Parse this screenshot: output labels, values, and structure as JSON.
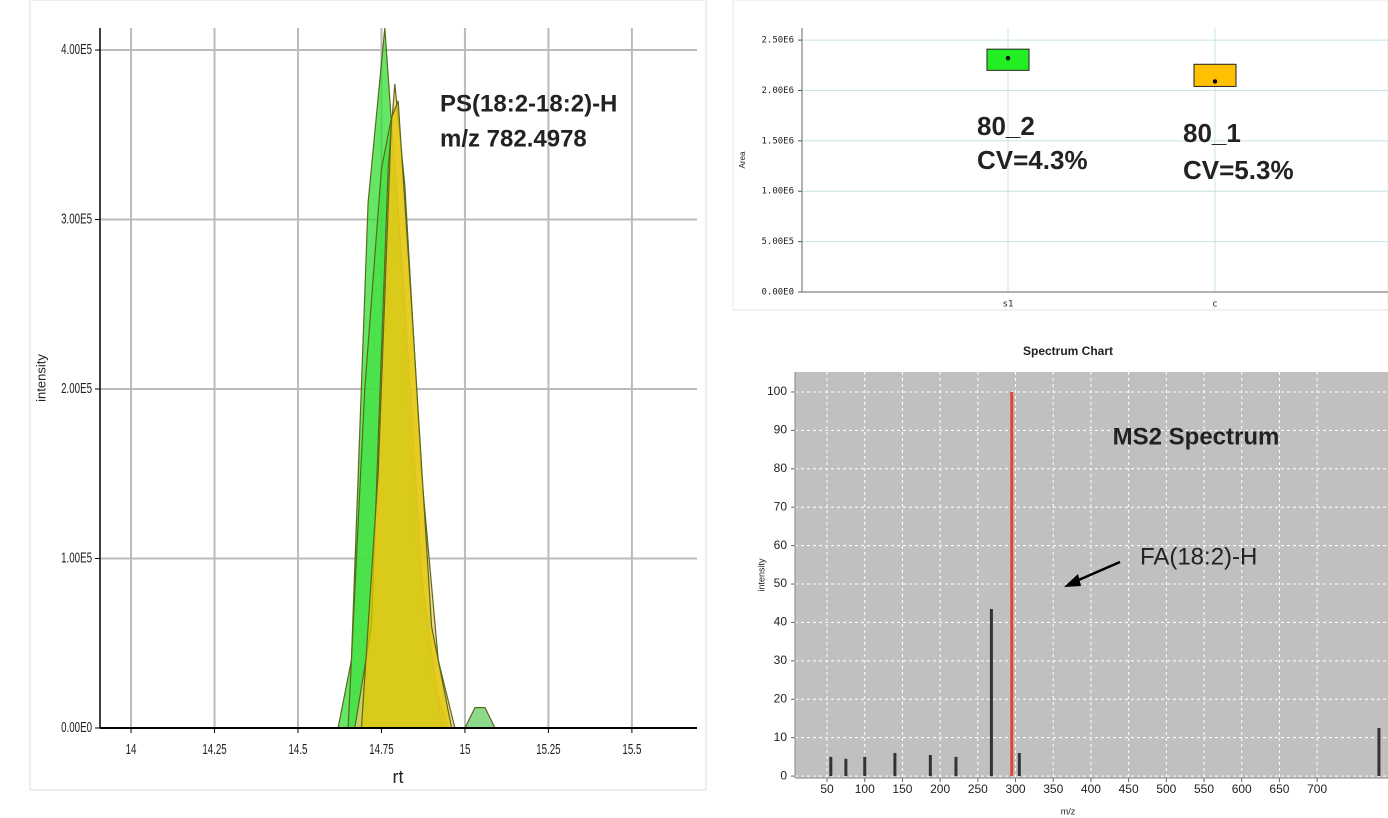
{
  "chart_data": [
    {
      "type": "area",
      "xlim": [
        13.907,
        15.695
      ],
      "ylim": [
        0,
        413000
      ],
      "xticks": [
        14,
        14.25,
        14.5,
        14.75,
        15,
        15.25,
        15.5
      ],
      "yticks": [
        {
          "value": 0,
          "label": "0.00E0"
        },
        {
          "value": 100000,
          "label": "1.00E5"
        },
        {
          "value": 200000,
          "label": "2.00E5"
        },
        {
          "value": 300000,
          "label": "3.00E5"
        },
        {
          "value": 400000,
          "label": "4.00E5"
        }
      ],
      "xlabel": "rt",
      "ylabel": "intensity",
      "grid": true,
      "annotations": [
        "PS(18:2-18:2)-H",
        "m/z 782.4978"
      ],
      "series": [
        {
          "color": "#33dd33",
          "x": [
            14.62,
            14.66,
            14.71,
            14.76,
            14.8,
            14.85,
            14.9,
            14.95
          ],
          "values": [
            0,
            40000,
            310000,
            413000,
            300000,
            120000,
            30000,
            0
          ]
        },
        {
          "color": "#44e044",
          "x": [
            14.65,
            14.7,
            14.75,
            14.78,
            14.82,
            14.87,
            14.93
          ],
          "values": [
            0,
            200000,
            330000,
            360000,
            250000,
            90000,
            0
          ]
        },
        {
          "color": "#f2c870",
          "x": [
            14.67,
            14.72,
            14.77,
            14.79,
            14.82,
            14.87,
            14.92,
            14.97
          ],
          "values": [
            0,
            60000,
            330000,
            380000,
            320000,
            150000,
            40000,
            0
          ]
        },
        {
          "color": "#e0c800",
          "x": [
            14.69,
            14.74,
            14.78,
            14.8,
            14.84,
            14.9,
            14.96
          ],
          "values": [
            0,
            150000,
            360000,
            370000,
            250000,
            60000,
            0
          ]
        },
        {
          "color": "#66cc66",
          "x": [
            15.0,
            15.03,
            15.06,
            15.09
          ],
          "values": [
            0,
            12000,
            12000,
            0
          ]
        }
      ]
    },
    {
      "type": "box",
      "categories": [
        "s1",
        "c"
      ],
      "ylim": [
        0,
        2620000
      ],
      "yticks": [
        {
          "value": 0,
          "label": "0.00E0"
        },
        {
          "value": 500000,
          "label": "5.00E5"
        },
        {
          "value": 1000000,
          "label": "1.00E6"
        },
        {
          "value": 1500000,
          "label": "1.50E6"
        },
        {
          "value": 2000000,
          "label": "2.00E6"
        },
        {
          "value": 2500000,
          "label": "2.50E6"
        }
      ],
      "ylabel": "Area",
      "grid": true,
      "values": [
        2320000,
        2090000
      ],
      "box_low": [
        2200000,
        2040000
      ],
      "box_high": [
        2410000,
        2260000
      ],
      "colors": [
        "#22ee22",
        "#ffc000"
      ],
      "annotations": [
        "80_2",
        "CV=4.3%",
        "80_1",
        "CV=5.3%"
      ]
    },
    {
      "type": "bar",
      "title": "Spectrum Chart",
      "xlim": [
        7.5,
        794
      ],
      "ylim": [
        -0.5,
        105.2
      ],
      "xticks": [
        50,
        100,
        150,
        200,
        250,
        300,
        350,
        400,
        450,
        500,
        550,
        600,
        650,
        700
      ],
      "yticks": [
        0,
        10,
        20,
        30,
        40,
        50,
        60,
        70,
        80,
        90,
        100
      ],
      "xlabel": "m/z",
      "ylabel": "intensity",
      "grid": true,
      "x": [
        55,
        75,
        100,
        140,
        187,
        221,
        268,
        295,
        305,
        782
      ],
      "values": [
        5,
        4.5,
        5,
        6,
        5.5,
        5,
        43.5,
        100,
        6,
        12.5
      ],
      "colors": [
        "#333333",
        "#333333",
        "#333333",
        "#333333",
        "#333333",
        "#333333",
        "#333333",
        "#e8413c",
        "#333333",
        "#333333"
      ],
      "annotations": [
        "MS2 Spectrum",
        "FA(18:2)-H"
      ]
    }
  ]
}
